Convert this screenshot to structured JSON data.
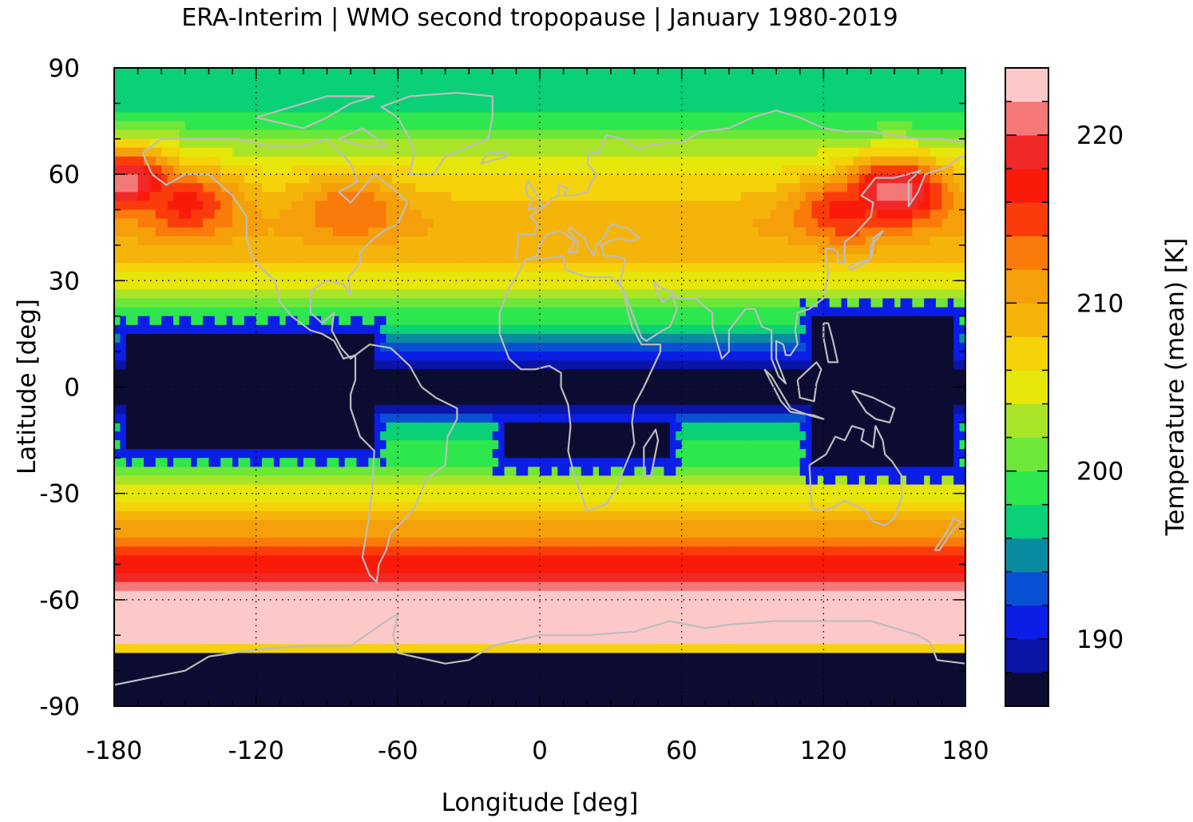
{
  "chart_data": {
    "type": "heatmap",
    "title": "ERA-Interim | WMO second tropopause | January 1980-2019",
    "xlabel": "Longitude [deg]",
    "ylabel": "Latitude [deg]",
    "xlim": [
      -180,
      180
    ],
    "ylim": [
      -90,
      90
    ],
    "x_ticks": [
      "-180",
      "-120",
      "-60",
      "0",
      "60",
      "120",
      "180"
    ],
    "y_ticks": [
      "90",
      "60",
      "30",
      "0",
      "-30",
      "-60",
      "-90"
    ],
    "grid": true,
    "colorbar": {
      "label": "Temperature (mean) [K]",
      "range": [
        186,
        224
      ],
      "ticks": [
        "190",
        "200",
        "210",
        "220"
      ],
      "levels": [
        {
          "lo": 186,
          "color": "#0c0c33"
        },
        {
          "lo": 188,
          "color": "#0a14a6"
        },
        {
          "lo": 190,
          "color": "#0a1ee6"
        },
        {
          "lo": 192,
          "color": "#0a50d2"
        },
        {
          "lo": 194,
          "color": "#0a8ca0"
        },
        {
          "lo": 196,
          "color": "#0ad078"
        },
        {
          "lo": 198,
          "color": "#2ee64e"
        },
        {
          "lo": 200,
          "color": "#6ee63a"
        },
        {
          "lo": 202,
          "color": "#aae428"
        },
        {
          "lo": 204,
          "color": "#e6e60a"
        },
        {
          "lo": 206,
          "color": "#f5d20a"
        },
        {
          "lo": 208,
          "color": "#f5b40a"
        },
        {
          "lo": 210,
          "color": "#f5a00a"
        },
        {
          "lo": 212,
          "color": "#fa7a0a"
        },
        {
          "lo": 214,
          "color": "#fa3c0a"
        },
        {
          "lo": 216,
          "color": "#fa1a0a"
        },
        {
          "lo": 218,
          "color": "#f02828"
        },
        {
          "lo": 220,
          "color": "#f57878"
        },
        {
          "lo": 222,
          "color": "#fcc8c8"
        }
      ]
    },
    "zonal_mean_temperature": [
      {
        "lat": 90,
        "t": 197
      },
      {
        "lat": 80,
        "t": 197
      },
      {
        "lat": 75,
        "t": 199
      },
      {
        "lat": 70,
        "t": 202
      },
      {
        "lat": 60,
        "t": 206
      },
      {
        "lat": 50,
        "t": 209
      },
      {
        "lat": 45,
        "t": 210
      },
      {
        "lat": 40,
        "t": 209
      },
      {
        "lat": 35,
        "t": 208
      },
      {
        "lat": 30,
        "t": 205
      },
      {
        "lat": 25,
        "t": 202
      },
      {
        "lat": 20,
        "t": 199
      },
      {
        "lat": 15,
        "t": 196
      },
      {
        "lat": 10,
        "t": 193
      },
      {
        "lat": 5,
        "t": 188
      },
      {
        "lat": 0,
        "t": 187
      },
      {
        "lat": -5,
        "t": 187
      },
      {
        "lat": -10,
        "t": 196
      },
      {
        "lat": -15,
        "t": 198
      },
      {
        "lat": -20,
        "t": 199
      },
      {
        "lat": -25,
        "t": 201
      },
      {
        "lat": -30,
        "t": 205
      },
      {
        "lat": -35,
        "t": 208
      },
      {
        "lat": -40,
        "t": 211
      },
      {
        "lat": -45,
        "t": 214
      },
      {
        "lat": -50,
        "t": 217
      },
      {
        "lat": -53,
        "t": 219
      },
      {
        "lat": -56,
        "t": 221
      },
      {
        "lat": -60,
        "t": 223
      },
      {
        "lat": -72,
        "t": 223
      },
      {
        "lat": -76,
        "t": 186
      },
      {
        "lat": -90,
        "t": 186
      }
    ],
    "warm_anomalies": [
      {
        "lon": -175,
        "lat": 58,
        "t": 221
      },
      {
        "lon": -150,
        "lat": 52,
        "t": 217
      },
      {
        "lon": -80,
        "lat": 50,
        "t": 214
      },
      {
        "lon": 150,
        "lat": 55,
        "t": 222
      },
      {
        "lon": 130,
        "lat": 50,
        "t": 217
      }
    ],
    "cold_regions": [
      {
        "lon": [
          -180,
          -65
        ],
        "lat": [
          -22,
          20
        ],
        "t": 186
      },
      {
        "lon": [
          -20,
          60
        ],
        "lat": [
          -25,
          -5
        ],
        "t": 186
      },
      {
        "lon": [
          110,
          180
        ],
        "lat": [
          -28,
          25
        ],
        "t": 186
      }
    ]
  }
}
